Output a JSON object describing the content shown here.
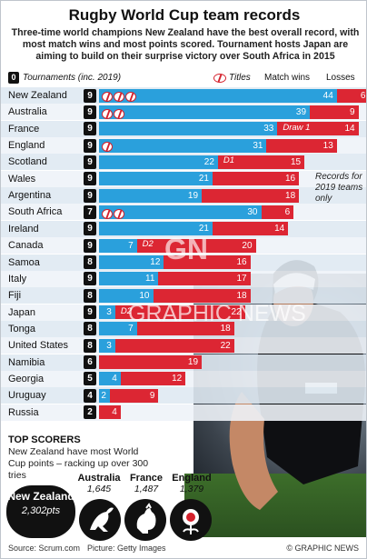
{
  "title": "Rugby World Cup team records",
  "subtitle": "Three-time world champions New Zealand have the best overall record, with most match wins and most points scored. Tournament hosts Japan are aiming to build on their surprise victory over South Africa in 2015",
  "legend": {
    "tournaments_badge": "0",
    "tournaments": "Tournaments (inc. 2019)",
    "titles": "Titles",
    "match_wins": "Match wins",
    "losses": "Losses"
  },
  "note": "Records for 2019 teams only",
  "chart_data": {
    "type": "bar",
    "categories": [
      "New Zealand",
      "Australia",
      "France",
      "England",
      "Scotland",
      "Wales",
      "Argentina",
      "South Africa",
      "Ireland",
      "Canada",
      "Samoa",
      "Italy",
      "Fiji",
      "Japan",
      "Tonga",
      "United States",
      "Namibia",
      "Georgia",
      "Uruguay",
      "Russia"
    ],
    "tournaments": [
      9,
      9,
      9,
      9,
      9,
      9,
      9,
      7,
      9,
      9,
      8,
      9,
      8,
      9,
      8,
      8,
      6,
      5,
      4,
      2
    ],
    "titles": [
      3,
      2,
      0,
      1,
      0,
      0,
      0,
      2,
      0,
      0,
      0,
      0,
      0,
      0,
      0,
      0,
      0,
      0,
      0,
      0
    ],
    "draws": [
      0,
      0,
      1,
      0,
      1,
      0,
      0,
      0,
      0,
      2,
      0,
      0,
      0,
      2,
      0,
      0,
      0,
      0,
      0,
      0
    ],
    "draw_labels": [
      "",
      "",
      "Draw 1",
      "",
      "D1",
      "",
      "",
      "",
      "",
      "D2",
      "",
      "",
      "",
      "D2",
      "",
      "",
      "",
      "",
      "",
      ""
    ],
    "series": [
      {
        "name": "Match wins",
        "values": [
          44,
          39,
          33,
          31,
          22,
          21,
          19,
          30,
          21,
          7,
          12,
          11,
          10,
          3,
          7,
          3,
          0,
          4,
          2,
          0
        ]
      },
      {
        "name": "Losses",
        "values": [
          6,
          9,
          14,
          13,
          15,
          16,
          18,
          6,
          14,
          20,
          16,
          17,
          18,
          22,
          18,
          22,
          19,
          12,
          9,
          4
        ]
      }
    ],
    "colors": {
      "wins": "#2aa0dc",
      "losses": "#dc2633",
      "badge": "#111111"
    },
    "xlim": [
      0,
      50
    ]
  },
  "top_scorers": {
    "heading": "TOP SCORERS",
    "description": "New Zealand have most World Cup points – racking up over 300 tries",
    "leader": {
      "name": "New Zealand",
      "points": "2,302pts"
    },
    "others": [
      {
        "name": "Australia",
        "points": "1,645"
      },
      {
        "name": "France",
        "points": "1,487"
      },
      {
        "name": "England",
        "points": "1,379"
      }
    ]
  },
  "watermark": {
    "logo": "GN",
    "text": "GRAPHIC NEWS"
  },
  "footer": {
    "source": "Source: Scrum.com",
    "picture": "Picture: Getty Images",
    "copyright": "© GRAPHIC NEWS"
  }
}
